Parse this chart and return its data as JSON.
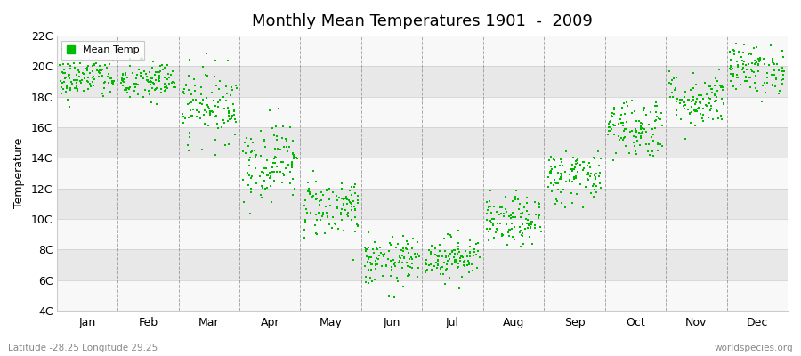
{
  "title": "Monthly Mean Temperatures 1901  -  2009",
  "ylabel": "Temperature",
  "bottom_left_text": "Latitude -28.25 Longitude 29.25",
  "bottom_right_text": "worldspecies.org",
  "legend_label": "Mean Temp",
  "ylim": [
    4,
    22
  ],
  "ytick_labels": [
    "4C",
    "6C",
    "8C",
    "10C",
    "12C",
    "14C",
    "16C",
    "18C",
    "20C",
    "22C"
  ],
  "ytick_values": [
    4,
    6,
    8,
    10,
    12,
    14,
    16,
    18,
    20,
    22
  ],
  "months": [
    "Jan",
    "Feb",
    "Mar",
    "Apr",
    "May",
    "Jun",
    "Jul",
    "Aug",
    "Sep",
    "Oct",
    "Nov",
    "Dec"
  ],
  "dot_color": "#00bb00",
  "bg_color": "#ffffff",
  "plot_bg_color": "#f5f5f5",
  "band_color_light": "#f8f8f8",
  "band_color_dark": "#e8e8e8",
  "vline_color": "#777777",
  "n_years": 109,
  "monthly_means": [
    19.2,
    19.0,
    17.5,
    13.8,
    10.8,
    7.2,
    7.5,
    9.8,
    12.8,
    16.0,
    17.8,
    19.8
  ],
  "monthly_stds": [
    0.7,
    0.7,
    1.2,
    1.3,
    1.0,
    0.8,
    0.7,
    0.8,
    0.9,
    1.0,
    0.9,
    0.8
  ]
}
